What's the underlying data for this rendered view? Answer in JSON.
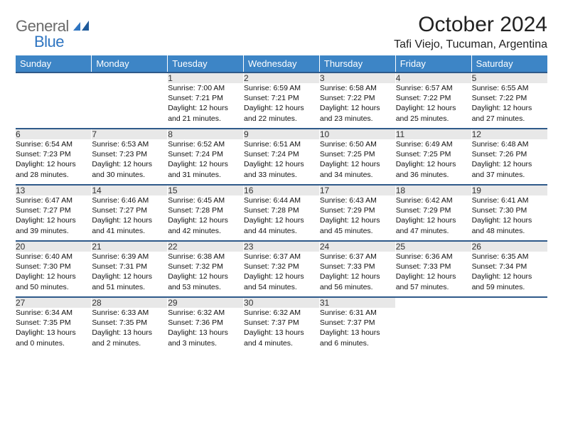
{
  "brand": {
    "part1": "General",
    "part2": "Blue"
  },
  "title": "October 2024",
  "location": "Tafi Viejo, Tucuman, Argentina",
  "colors": {
    "header_bg": "#3d85c6",
    "header_text": "#ffffff",
    "daynum_bg": "#e8e8e8",
    "week_divider": "#2f5a8a",
    "logo_gray": "#6b6b6b",
    "logo_blue": "#2f75c1"
  },
  "days_of_week": [
    "Sunday",
    "Monday",
    "Tuesday",
    "Wednesday",
    "Thursday",
    "Friday",
    "Saturday"
  ],
  "weeks": [
    [
      null,
      null,
      {
        "n": "1",
        "sr": "Sunrise: 7:00 AM",
        "ss": "Sunset: 7:21 PM",
        "dl1": "Daylight: 12 hours",
        "dl2": "and 21 minutes."
      },
      {
        "n": "2",
        "sr": "Sunrise: 6:59 AM",
        "ss": "Sunset: 7:21 PM",
        "dl1": "Daylight: 12 hours",
        "dl2": "and 22 minutes."
      },
      {
        "n": "3",
        "sr": "Sunrise: 6:58 AM",
        "ss": "Sunset: 7:22 PM",
        "dl1": "Daylight: 12 hours",
        "dl2": "and 23 minutes."
      },
      {
        "n": "4",
        "sr": "Sunrise: 6:57 AM",
        "ss": "Sunset: 7:22 PM",
        "dl1": "Daylight: 12 hours",
        "dl2": "and 25 minutes."
      },
      {
        "n": "5",
        "sr": "Sunrise: 6:55 AM",
        "ss": "Sunset: 7:22 PM",
        "dl1": "Daylight: 12 hours",
        "dl2": "and 27 minutes."
      }
    ],
    [
      {
        "n": "6",
        "sr": "Sunrise: 6:54 AM",
        "ss": "Sunset: 7:23 PM",
        "dl1": "Daylight: 12 hours",
        "dl2": "and 28 minutes."
      },
      {
        "n": "7",
        "sr": "Sunrise: 6:53 AM",
        "ss": "Sunset: 7:23 PM",
        "dl1": "Daylight: 12 hours",
        "dl2": "and 30 minutes."
      },
      {
        "n": "8",
        "sr": "Sunrise: 6:52 AM",
        "ss": "Sunset: 7:24 PM",
        "dl1": "Daylight: 12 hours",
        "dl2": "and 31 minutes."
      },
      {
        "n": "9",
        "sr": "Sunrise: 6:51 AM",
        "ss": "Sunset: 7:24 PM",
        "dl1": "Daylight: 12 hours",
        "dl2": "and 33 minutes."
      },
      {
        "n": "10",
        "sr": "Sunrise: 6:50 AM",
        "ss": "Sunset: 7:25 PM",
        "dl1": "Daylight: 12 hours",
        "dl2": "and 34 minutes."
      },
      {
        "n": "11",
        "sr": "Sunrise: 6:49 AM",
        "ss": "Sunset: 7:25 PM",
        "dl1": "Daylight: 12 hours",
        "dl2": "and 36 minutes."
      },
      {
        "n": "12",
        "sr": "Sunrise: 6:48 AM",
        "ss": "Sunset: 7:26 PM",
        "dl1": "Daylight: 12 hours",
        "dl2": "and 37 minutes."
      }
    ],
    [
      {
        "n": "13",
        "sr": "Sunrise: 6:47 AM",
        "ss": "Sunset: 7:27 PM",
        "dl1": "Daylight: 12 hours",
        "dl2": "and 39 minutes."
      },
      {
        "n": "14",
        "sr": "Sunrise: 6:46 AM",
        "ss": "Sunset: 7:27 PM",
        "dl1": "Daylight: 12 hours",
        "dl2": "and 41 minutes."
      },
      {
        "n": "15",
        "sr": "Sunrise: 6:45 AM",
        "ss": "Sunset: 7:28 PM",
        "dl1": "Daylight: 12 hours",
        "dl2": "and 42 minutes."
      },
      {
        "n": "16",
        "sr": "Sunrise: 6:44 AM",
        "ss": "Sunset: 7:28 PM",
        "dl1": "Daylight: 12 hours",
        "dl2": "and 44 minutes."
      },
      {
        "n": "17",
        "sr": "Sunrise: 6:43 AM",
        "ss": "Sunset: 7:29 PM",
        "dl1": "Daylight: 12 hours",
        "dl2": "and 45 minutes."
      },
      {
        "n": "18",
        "sr": "Sunrise: 6:42 AM",
        "ss": "Sunset: 7:29 PM",
        "dl1": "Daylight: 12 hours",
        "dl2": "and 47 minutes."
      },
      {
        "n": "19",
        "sr": "Sunrise: 6:41 AM",
        "ss": "Sunset: 7:30 PM",
        "dl1": "Daylight: 12 hours",
        "dl2": "and 48 minutes."
      }
    ],
    [
      {
        "n": "20",
        "sr": "Sunrise: 6:40 AM",
        "ss": "Sunset: 7:30 PM",
        "dl1": "Daylight: 12 hours",
        "dl2": "and 50 minutes."
      },
      {
        "n": "21",
        "sr": "Sunrise: 6:39 AM",
        "ss": "Sunset: 7:31 PM",
        "dl1": "Daylight: 12 hours",
        "dl2": "and 51 minutes."
      },
      {
        "n": "22",
        "sr": "Sunrise: 6:38 AM",
        "ss": "Sunset: 7:32 PM",
        "dl1": "Daylight: 12 hours",
        "dl2": "and 53 minutes."
      },
      {
        "n": "23",
        "sr": "Sunrise: 6:37 AM",
        "ss": "Sunset: 7:32 PM",
        "dl1": "Daylight: 12 hours",
        "dl2": "and 54 minutes."
      },
      {
        "n": "24",
        "sr": "Sunrise: 6:37 AM",
        "ss": "Sunset: 7:33 PM",
        "dl1": "Daylight: 12 hours",
        "dl2": "and 56 minutes."
      },
      {
        "n": "25",
        "sr": "Sunrise: 6:36 AM",
        "ss": "Sunset: 7:33 PM",
        "dl1": "Daylight: 12 hours",
        "dl2": "and 57 minutes."
      },
      {
        "n": "26",
        "sr": "Sunrise: 6:35 AM",
        "ss": "Sunset: 7:34 PM",
        "dl1": "Daylight: 12 hours",
        "dl2": "and 59 minutes."
      }
    ],
    [
      {
        "n": "27",
        "sr": "Sunrise: 6:34 AM",
        "ss": "Sunset: 7:35 PM",
        "dl1": "Daylight: 13 hours",
        "dl2": "and 0 minutes."
      },
      {
        "n": "28",
        "sr": "Sunrise: 6:33 AM",
        "ss": "Sunset: 7:35 PM",
        "dl1": "Daylight: 13 hours",
        "dl2": "and 2 minutes."
      },
      {
        "n": "29",
        "sr": "Sunrise: 6:32 AM",
        "ss": "Sunset: 7:36 PM",
        "dl1": "Daylight: 13 hours",
        "dl2": "and 3 minutes."
      },
      {
        "n": "30",
        "sr": "Sunrise: 6:32 AM",
        "ss": "Sunset: 7:37 PM",
        "dl1": "Daylight: 13 hours",
        "dl2": "and 4 minutes."
      },
      {
        "n": "31",
        "sr": "Sunrise: 6:31 AM",
        "ss": "Sunset: 7:37 PM",
        "dl1": "Daylight: 13 hours",
        "dl2": "and 6 minutes."
      },
      null,
      null
    ]
  ]
}
